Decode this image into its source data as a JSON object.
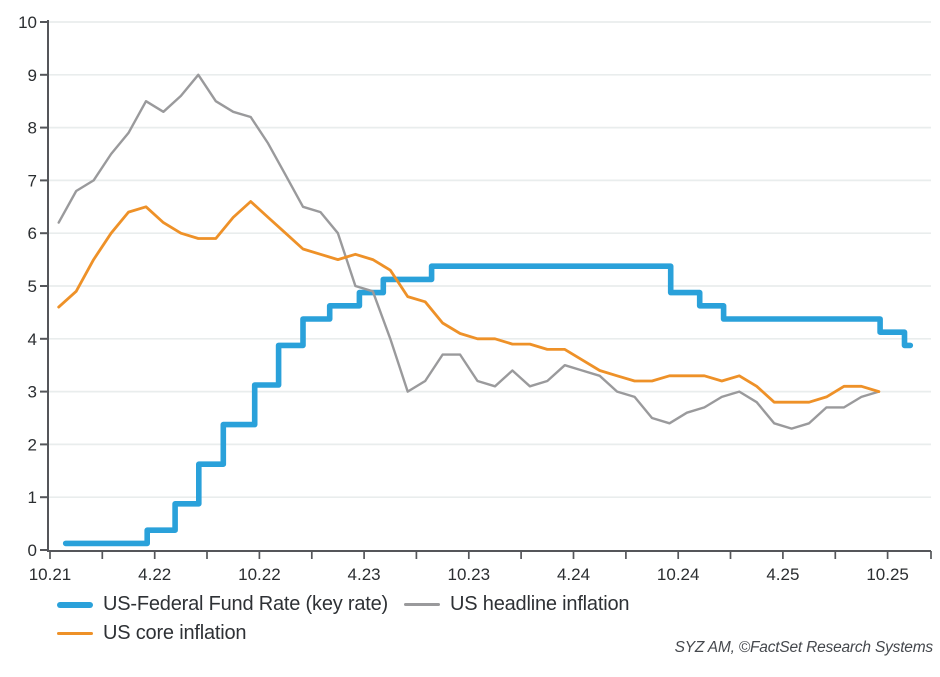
{
  "chart_data": {
    "type": "line",
    "title": "",
    "x_axis": {
      "tick_labels": [
        "10.21",
        "4.22",
        "10.22",
        "4.23",
        "10.23",
        "4.24",
        "10.24",
        "4.25",
        "10.25"
      ],
      "label_interval_months": 6,
      "minor_tick_interval_months": 3,
      "total_months_shown": 49.4
    },
    "y_axis": {
      "ticks": [
        0,
        1,
        2,
        3,
        4,
        5,
        6,
        7,
        8,
        9,
        10
      ],
      "range": [
        0,
        10
      ]
    },
    "grid": "horizontal",
    "legend_position": "bottom-left",
    "series": [
      {
        "name": "US-Federal Fund Rate (key rate)",
        "color": "#2AA1DA",
        "style": "step",
        "unit": "%",
        "points_month_value": [
          [
            0.9,
            0.125
          ],
          [
            5.57,
            0.375
          ],
          [
            7.17,
            0.875
          ],
          [
            8.53,
            1.625
          ],
          [
            9.93,
            2.375
          ],
          [
            11.73,
            3.125
          ],
          [
            13.1,
            3.875
          ],
          [
            14.5,
            4.375
          ],
          [
            16.03,
            4.625
          ],
          [
            17.73,
            4.875
          ],
          [
            19.1,
            5.125
          ],
          [
            21.87,
            5.375
          ],
          [
            35.57,
            4.875
          ],
          [
            37.23,
            4.625
          ],
          [
            38.6,
            4.375
          ],
          [
            47.57,
            4.125
          ],
          [
            48.97,
            3.875
          ]
        ],
        "end_month": 49.3
      },
      {
        "name": "US headline inflation",
        "color": "#9A9A9C",
        "style": "line",
        "unit": "%",
        "start_month_offset": 0.5,
        "values": [
          6.2,
          6.8,
          7.0,
          7.5,
          7.9,
          8.5,
          8.3,
          8.6,
          9.0,
          8.5,
          8.3,
          8.2,
          7.7,
          7.1,
          6.5,
          6.4,
          6.0,
          5.0,
          4.9,
          4.0,
          3.0,
          3.2,
          3.7,
          3.7,
          3.2,
          3.1,
          3.4,
          3.1,
          3.2,
          3.5,
          3.4,
          3.3,
          3.0,
          2.9,
          2.5,
          2.4,
          2.6,
          2.7,
          2.9,
          3.0,
          2.8,
          2.4,
          2.3,
          2.4,
          2.7,
          2.7,
          2.9,
          3.0
        ]
      },
      {
        "name": "US core inflation",
        "color": "#EE9128",
        "style": "line",
        "unit": "%",
        "start_month_offset": 0.5,
        "values": [
          4.6,
          4.9,
          5.5,
          6.0,
          6.4,
          6.5,
          6.2,
          6.0,
          5.9,
          5.9,
          6.3,
          6.6,
          6.3,
          6.0,
          5.7,
          5.6,
          5.5,
          5.6,
          5.5,
          5.3,
          4.8,
          4.7,
          4.3,
          4.1,
          4.0,
          4.0,
          3.9,
          3.9,
          3.8,
          3.8,
          3.6,
          3.4,
          3.3,
          3.2,
          3.2,
          3.3,
          3.3,
          3.3,
          3.2,
          3.3,
          3.1,
          2.8,
          2.8,
          2.8,
          2.9,
          3.1,
          3.1,
          3.0
        ]
      }
    ]
  },
  "legend": {
    "items": [
      {
        "label": "US-Federal Fund Rate (key rate)",
        "color": "#2AA1DA",
        "thickness": 6
      },
      {
        "label": "US headline inflation",
        "color": "#9A9A9C",
        "thickness": 3
      },
      {
        "label": "US core inflation",
        "color": "#EE9128",
        "thickness": 3
      }
    ]
  },
  "attribution": "SYZ AM, ©FactSet Research Systems",
  "colors": {
    "fed_rate": "#2AA1DA",
    "headline_inflation": "#9A9A9C",
    "core_inflation": "#EE9128",
    "gridline": "#E9EDED",
    "axis": "#55565A",
    "tick_label": "#2B2E31"
  }
}
